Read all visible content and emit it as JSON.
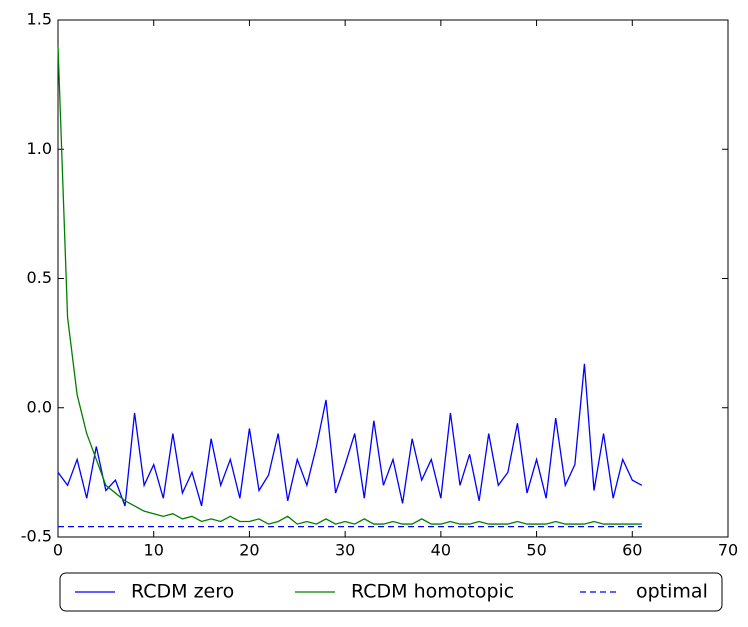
{
  "chart_data": {
    "type": "line",
    "xlim": [
      0,
      70
    ],
    "xticks": [
      0,
      10,
      20,
      30,
      40,
      50,
      60,
      70
    ],
    "ylim": [
      -0.5,
      1.5
    ],
    "yticks": [
      -0.5,
      {
        "value": 0,
        "label": "0.0"
      },
      0.5,
      {
        "value": 1,
        "label": "1.0"
      },
      1.5
    ],
    "series": [
      {
        "name": "RCDM zero",
        "color": "#0000ff",
        "linestyle": "solid",
        "x": [
          0,
          1,
          2,
          3,
          4,
          5,
          6,
          7,
          8,
          9,
          10,
          11,
          12,
          13,
          14,
          15,
          16,
          17,
          18,
          19,
          20,
          21,
          22,
          23,
          24,
          25,
          26,
          27,
          28,
          29,
          30,
          31,
          32,
          33,
          34,
          35,
          36,
          37,
          38,
          39,
          40,
          41,
          42,
          43,
          44,
          45,
          46,
          47,
          48,
          49,
          50,
          51,
          52,
          53,
          54,
          55,
          56,
          57,
          58,
          59,
          60,
          61
        ],
        "values": [
          -0.25,
          -0.3,
          -0.2,
          -0.35,
          -0.15,
          -0.32,
          -0.28,
          -0.38,
          -0.02,
          -0.3,
          -0.22,
          -0.35,
          -0.1,
          -0.33,
          -0.25,
          -0.38,
          -0.12,
          -0.3,
          -0.2,
          -0.35,
          -0.08,
          -0.32,
          -0.26,
          -0.1,
          -0.36,
          -0.2,
          -0.3,
          -0.15,
          0.03,
          -0.33,
          -0.22,
          -0.1,
          -0.35,
          -0.05,
          -0.3,
          -0.2,
          -0.37,
          -0.12,
          -0.28,
          -0.2,
          -0.35,
          -0.02,
          -0.3,
          -0.18,
          -0.36,
          -0.1,
          -0.3,
          -0.25,
          -0.06,
          -0.33,
          -0.2,
          -0.35,
          -0.04,
          -0.3,
          -0.22,
          0.17,
          -0.32,
          -0.1,
          -0.35,
          -0.2,
          -0.28,
          -0.3
        ]
      },
      {
        "name": "RCDM homotopic",
        "color": "#008000",
        "linestyle": "solid",
        "x": [
          0,
          1,
          2,
          3,
          4,
          5,
          6,
          7,
          8,
          9,
          10,
          11,
          12,
          13,
          14,
          15,
          16,
          17,
          18,
          19,
          20,
          21,
          22,
          23,
          24,
          25,
          26,
          27,
          28,
          29,
          30,
          31,
          32,
          33,
          34,
          35,
          36,
          37,
          38,
          39,
          40,
          41,
          42,
          43,
          44,
          45,
          46,
          47,
          48,
          49,
          50,
          51,
          52,
          53,
          54,
          55,
          56,
          57,
          58,
          59,
          60,
          61
        ],
        "values": [
          1.4,
          0.35,
          0.05,
          -0.1,
          -0.2,
          -0.3,
          -0.33,
          -0.36,
          -0.38,
          -0.4,
          -0.41,
          -0.42,
          -0.41,
          -0.43,
          -0.42,
          -0.44,
          -0.43,
          -0.44,
          -0.42,
          -0.44,
          -0.44,
          -0.43,
          -0.45,
          -0.44,
          -0.42,
          -0.45,
          -0.44,
          -0.45,
          -0.43,
          -0.45,
          -0.44,
          -0.45,
          -0.43,
          -0.45,
          -0.45,
          -0.44,
          -0.45,
          -0.45,
          -0.43,
          -0.45,
          -0.45,
          -0.44,
          -0.45,
          -0.45,
          -0.44,
          -0.45,
          -0.45,
          -0.45,
          -0.44,
          -0.45,
          -0.45,
          -0.45,
          -0.44,
          -0.45,
          -0.45,
          -0.45,
          -0.44,
          -0.45,
          -0.45,
          -0.45,
          -0.45,
          -0.45
        ]
      },
      {
        "name": "optimal",
        "color": "#0000ff",
        "linestyle": "dashed",
        "x": [
          0,
          61
        ],
        "values": [
          -0.46,
          -0.46
        ]
      }
    ]
  }
}
